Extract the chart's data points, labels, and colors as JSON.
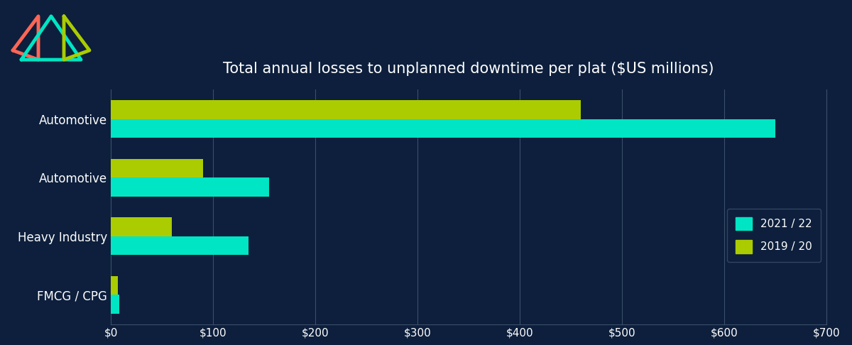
{
  "title": "Total annual losses to unplanned downtime per plat ($US millions)",
  "categories": [
    "Automotive",
    "Automotive",
    "Heavy Industry",
    "FMCG / CPG"
  ],
  "values_2021_22": [
    650,
    155,
    135,
    8
  ],
  "values_2019_20": [
    460,
    90,
    60,
    7
  ],
  "color_2021_22": "#00E5C3",
  "color_2019_20": "#AACC00",
  "background_color": "#0D1F3C",
  "text_color": "#FFFFFF",
  "grid_color": "#3A4F6A",
  "legend_2021_22": "2021 / 22",
  "legend_2019_20": "2019 / 20",
  "xlim": [
    0,
    700
  ],
  "xticks": [
    0,
    100,
    200,
    300,
    400,
    500,
    600,
    700
  ],
  "xtick_labels": [
    "$0",
    "$100",
    "$200",
    "$300",
    "$400",
    "$500",
    "$600",
    "$700"
  ],
  "bar_height": 0.32,
  "title_fontsize": 15,
  "tick_fontsize": 11,
  "label_fontsize": 12,
  "legend_fontsize": 11,
  "logo_colors": [
    "#FF6B6B",
    "#00E5C3",
    "#AACC00"
  ]
}
